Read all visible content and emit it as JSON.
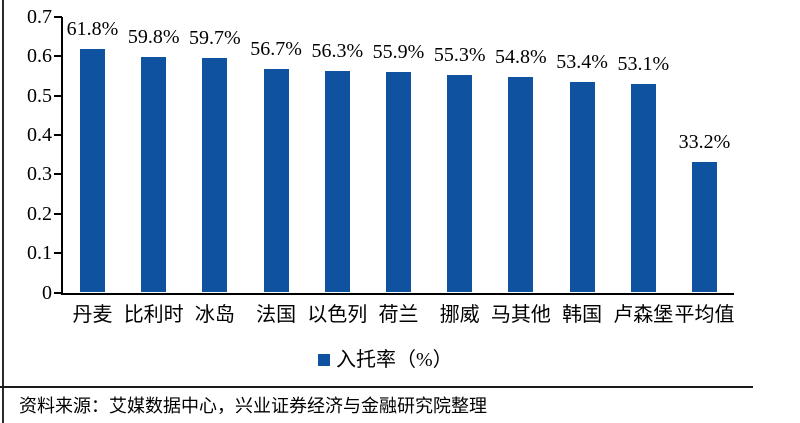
{
  "chart_data": {
    "type": "bar",
    "title": "",
    "categories": [
      "丹麦",
      "比利时",
      "冰岛",
      "法国",
      "以色列",
      "荷兰",
      "挪威",
      "马其他",
      "韩国",
      "卢森堡",
      "平均值"
    ],
    "values": [
      0.618,
      0.598,
      0.597,
      0.567,
      0.563,
      0.559,
      0.553,
      0.548,
      0.534,
      0.531,
      0.332
    ],
    "value_labels": [
      "61.8%",
      "59.8%",
      "59.7%",
      "56.7%",
      "56.3%",
      "55.9%",
      "55.3%",
      "54.8%",
      "53.4%",
      "53.1%",
      "33.2%"
    ],
    "xlabel": "",
    "ylabel": "",
    "ylim": [
      0,
      0.7
    ],
    "ytick_labels": [
      "0.7",
      "0.6",
      "0.5",
      "0.4",
      "0.3",
      "0.2",
      "0.1",
      "0"
    ],
    "grid": false,
    "legend": {
      "label": "入托率（%）",
      "position": "bottom-center"
    },
    "bar_color": "#0E52A0"
  },
  "source_note": "资料来源：艾媒数据中心，兴业证券经济与金融研究院整理",
  "colors": {
    "bar": "#0E52A0",
    "axis": "#000000",
    "divider": "#1a1a1a",
    "page_border": "#2b2b2b",
    "text": "#000000"
  }
}
